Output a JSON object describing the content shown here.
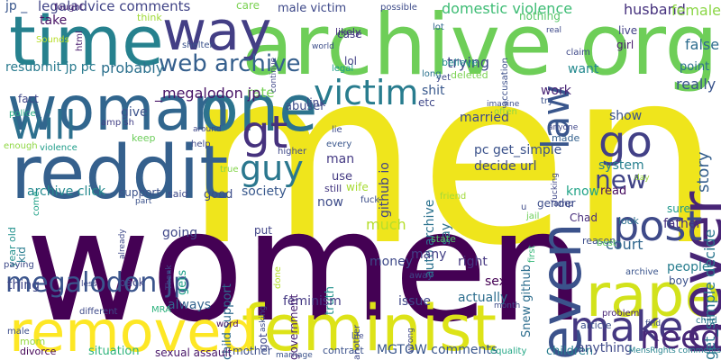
{
  "words": [
    {
      "text": "men",
      "color": "#efe51c"
    },
    {
      "text": "women",
      "color": "#440154"
    },
    {
      "text": "archive org",
      "color": "#6ece58"
    },
    {
      "text": "time",
      "color": "#26818e"
    },
    {
      "text": "reddit",
      "color": "#35608d"
    },
    {
      "text": "woman",
      "color": "#31668e"
    },
    {
      "text": "one",
      "color": "#2c738e"
    },
    {
      "text": "way",
      "color": "#433e85"
    },
    {
      "text": "feminist",
      "color": "#dde318"
    },
    {
      "text": "removed",
      "color": "#fde725"
    },
    {
      "text": "rape",
      "color": "#d2e21b"
    },
    {
      "text": "never",
      "color": "#482576"
    },
    {
      "text": "even",
      "color": "#3b528b"
    },
    {
      "text": "post",
      "color": "#3e4a89"
    },
    {
      "text": "make",
      "color": "#453882"
    },
    {
      "text": "will",
      "color": "#2d708e"
    },
    {
      "text": "gt",
      "color": "#46327e"
    },
    {
      "text": "go",
      "color": "#424086"
    },
    {
      "text": "law",
      "color": "#39568c"
    },
    {
      "text": "victim",
      "color": "#287c8e"
    },
    {
      "text": "guy",
      "color": "#2a778e"
    },
    {
      "text": "need",
      "color": "#482878"
    },
    {
      "text": "web archive",
      "color": "#355f8d"
    },
    {
      "text": "megalodon jp",
      "color": "#3a548c"
    },
    {
      "text": "new",
      "color": "#414487"
    },
    {
      "text": "jp _",
      "color": "#39568c"
    },
    {
      "text": "legaladvice comments",
      "color": "#414487"
    },
    {
      "text": "male victim",
      "color": "#3e4989"
    },
    {
      "text": "care",
      "color": "#7ad151"
    },
    {
      "text": "domestic violence",
      "color": "#3dbc74"
    },
    {
      "text": "husband",
      "color": "#46327e"
    },
    {
      "text": "female",
      "color": "#8bd646"
    },
    {
      "text": "story",
      "color": "#355f8d"
    },
    {
      "text": "false",
      "color": "#2e6d8e"
    },
    {
      "text": "get_simple decide",
      "color": "#2a768e"
    },
    {
      "text": "court",
      "color": "#31678e"
    },
    {
      "text": "resubmit jp pc",
      "color": "#297a8e"
    },
    {
      "text": "probably",
      "color": "#2d718e"
    },
    {
      "text": "take",
      "color": "#471063"
    },
    {
      "text": "think",
      "color": "#a0da39"
    },
    {
      "text": "work",
      "color": "#482475"
    },
    {
      "text": "want",
      "color": "#23898e"
    },
    {
      "text": "really",
      "color": "#3a548c"
    },
    {
      "text": "point",
      "color": "#2d708e"
    },
    {
      "text": "lol",
      "color": "#424086"
    },
    {
      "text": "trying",
      "color": "#3f4889"
    },
    {
      "text": "shit",
      "color": "#38588c"
    },
    {
      "text": "rate",
      "color": "#75d054"
    },
    {
      "text": "abuser",
      "color": "#3d4d8a"
    },
    {
      "text": "_megalodon jp",
      "color": "#481467"
    },
    {
      "text": "give",
      "color": "#3b528b"
    },
    {
      "text": "github io",
      "color": "#414487"
    },
    {
      "text": "auto archive",
      "color": "#2c728e"
    },
    {
      "text": "pc get_simple",
      "color": "#3b528b"
    },
    {
      "text": "decide url",
      "color": "#3e4a89"
    },
    {
      "text": "man",
      "color": "#443983"
    },
    {
      "text": "married",
      "color": "#3e4a89"
    },
    {
      "text": "show",
      "color": "#3b528b"
    },
    {
      "text": "system",
      "color": "#277f8e"
    },
    {
      "text": "know",
      "color": "#20a386"
    },
    {
      "text": "read",
      "color": "#470e61"
    },
    {
      "text": "sure",
      "color": "#1f988b"
    },
    {
      "text": "use",
      "color": "#443a83"
    },
    {
      "text": "wife",
      "color": "#a8db34"
    },
    {
      "text": "archive click",
      "color": "#23898e"
    },
    {
      "text": "support",
      "color": "#3b528b"
    },
    {
      "text": "society",
      "color": "#38588c"
    },
    {
      "text": "good",
      "color": "#3d4e8a"
    },
    {
      "text": "year old",
      "color": "#21918c"
    },
    {
      "text": "child support",
      "color": "#2f6b8e"
    },
    {
      "text": "gets",
      "color": "#1fa088"
    },
    {
      "text": "truth",
      "color": "#21918c"
    },
    {
      "text": "now",
      "color": "#3e4c8a"
    },
    {
      "text": "much",
      "color": "#b5de2b"
    },
    {
      "text": "say",
      "color": "#2c728e"
    },
    {
      "text": "Snew github",
      "color": "#2e6e8e"
    },
    {
      "text": "father",
      "color": "#46307e"
    },
    {
      "text": "people",
      "color": "#287d8e"
    },
    {
      "text": "boy",
      "color": "#3b528b"
    },
    {
      "text": "kid",
      "color": "#287c8e"
    },
    {
      "text": "going",
      "color": "#3f4788"
    },
    {
      "text": "money",
      "color": "#3e4989"
    },
    {
      "text": "many",
      "color": "#424086"
    },
    {
      "text": "right",
      "color": "#453781"
    },
    {
      "text": "thing",
      "color": "#3f4788"
    },
    {
      "text": "always",
      "color": "#33638d"
    },
    {
      "text": "feminism",
      "color": "#443983"
    },
    {
      "text": "sex",
      "color": "#440154"
    },
    {
      "text": "actually",
      "color": "#2e6e8e"
    },
    {
      "text": "issue",
      "color": "#3f4788"
    },
    {
      "text": "mother",
      "color": "#3c4f8a"
    },
    {
      "text": "situation",
      "color": "#2fb47c"
    },
    {
      "text": "sexual assault",
      "color": "#481668"
    },
    {
      "text": "MGTOW comments",
      "color": "#39568c"
    },
    {
      "text": "children",
      "color": "#287d8e"
    },
    {
      "text": "anything",
      "color": "#3e4989"
    },
    {
      "text": "divorce",
      "color": "#450457"
    },
    {
      "text": "mom",
      "color": "#95d840"
    },
    {
      "text": "got",
      "color": "#3f4889"
    },
    {
      "text": "back",
      "color": "#404588"
    },
    {
      "text": "word",
      "color": "#471365"
    },
    {
      "text": "contract",
      "color": "#3b528b"
    },
    {
      "text": "Sounds",
      "color": "#b8de29"
    },
    {
      "text": "fact",
      "color": "#3f4788"
    },
    {
      "text": "amp sh",
      "color": "#424086"
    },
    {
      "text": "keep",
      "color": "#6ccd5a"
    },
    {
      "text": "help",
      "color": "#3e4a89"
    },
    {
      "text": "said",
      "color": "#3e4989"
    },
    {
      "text": "put",
      "color": "#414487"
    },
    {
      "text": "government",
      "color": "#482173"
    },
    {
      "text": "etc",
      "color": "#3f4889"
    },
    {
      "text": "link",
      "color": "#3f4788"
    },
    {
      "text": "case",
      "color": "#433d84"
    },
    {
      "text": "likely",
      "color": "#46307e"
    },
    {
      "text": "nothing",
      "color": "#56c667"
    },
    {
      "text": "lot",
      "color": "#31668e"
    },
    {
      "text": "live",
      "color": "#424186"
    },
    {
      "text": "girl",
      "color": "#481c6e"
    },
    {
      "text": "fought",
      "color": "#482071"
    },
    {
      "text": "html",
      "color": "#481a6c"
    },
    {
      "text": "lie",
      "color": "#3e4c8a"
    },
    {
      "text": "every",
      "color": "#39568c"
    },
    {
      "text": "still",
      "color": "#453882"
    },
    {
      "text": "higher",
      "color": "#3f4889"
    },
    {
      "text": "made",
      "color": "#34618d"
    },
    {
      "text": "gender",
      "color": "#3d4d8a"
    },
    {
      "text": "Chad",
      "color": "#472d7b"
    },
    {
      "text": "look",
      "color": "#2d708e"
    },
    {
      "text": "reason",
      "color": "#3d4e8a"
    },
    {
      "text": "best",
      "color": "#5ec962"
    },
    {
      "text": "archive",
      "color": "#3a548c"
    },
    {
      "text": "article",
      "color": "#3c4f8a"
    },
    {
      "text": "problem",
      "color": "#482576"
    },
    {
      "text": "child",
      "color": "#2a778e"
    },
    {
      "text": "equality",
      "color": "#22a785"
    },
    {
      "text": "MensRights comments",
      "color": "#26828e"
    },
    {
      "text": "paying",
      "color": "#3e4a89"
    },
    {
      "text": "enough",
      "color": "#8fd744"
    },
    {
      "text": "police",
      "color": "#27ad81"
    },
    {
      "text": "violence",
      "color": "#1e9c89"
    },
    {
      "text": "male",
      "color": "#3d4e8a"
    },
    {
      "text": "different",
      "color": "#3e4a89"
    },
    {
      "text": "marriage",
      "color": "#3b528b"
    },
    {
      "text": "another",
      "color": "#3e4989"
    },
    {
      "text": "first",
      "color": "#35b779"
    },
    {
      "text": "state",
      "color": "#52c569"
    },
    {
      "text": "away",
      "color": "#3f4889"
    },
    {
      "text": "yet",
      "color": "#3f4889"
    },
    {
      "text": "deleted",
      "color": "#7ad151"
    },
    {
      "text": "believe",
      "color": "#23898e"
    },
    {
      "text": "long",
      "color": "#2c738e"
    },
    {
      "text": "legal",
      "color": "#1f9e89"
    },
    {
      "text": "possible",
      "color": "#3e4c8a"
    },
    {
      "text": "shelter",
      "color": "#3b528b"
    },
    {
      "text": "around",
      "color": "#3f4788"
    },
    {
      "text": "world",
      "color": "#3d4e8a"
    },
    {
      "text": "claim",
      "color": "#3e4989"
    },
    {
      "text": "accusation",
      "color": "#3c4f8a"
    },
    {
      "text": "imagine",
      "color": "#3d4d8a"
    },
    {
      "text": "often",
      "color": "#90d743"
    },
    {
      "text": "anyone",
      "color": "#3f4788"
    },
    {
      "text": "friend",
      "color": "#a0da39"
    },
    {
      "text": "jail",
      "color": "#6ece58"
    },
    {
      "text": "fucking",
      "color": "#3f4788"
    },
    {
      "text": "amp",
      "color": "#3e4989"
    },
    {
      "text": "day",
      "color": "#9bd93c"
    },
    {
      "text": "month",
      "color": "#3e4c8a"
    },
    {
      "text": "life",
      "color": "#3e4a89"
    },
    {
      "text": "find",
      "color": "#3d4e8a"
    },
    {
      "text": "less",
      "color": "#3e4989"
    },
    {
      "text": "Thank",
      "color": "#3f4788"
    },
    {
      "text": "MRA",
      "color": "#2db27d"
    },
    {
      "text": "done",
      "color": "#b5de2b"
    },
    {
      "text": "asking",
      "color": "#3d4e8a"
    },
    {
      "text": "part",
      "color": "#3b528b"
    },
    {
      "text": "already",
      "color": "#3e4989"
    },
    {
      "text": "come",
      "color": "#1fa187"
    },
    {
      "text": "true",
      "color": "#84d44b"
    },
    {
      "text": "wrong",
      "color": "#3f4788"
    },
    {
      "text": "continue",
      "color": "#3f4788"
    },
    {
      "text": "try",
      "color": "#3b528b"
    },
    {
      "text": "real",
      "color": "#3e4989"
    },
    {
      "text": "fuck",
      "color": "#3d4e8a"
    },
    {
      "text": "u",
      "color": "#3e4a89"
    }
  ]
}
